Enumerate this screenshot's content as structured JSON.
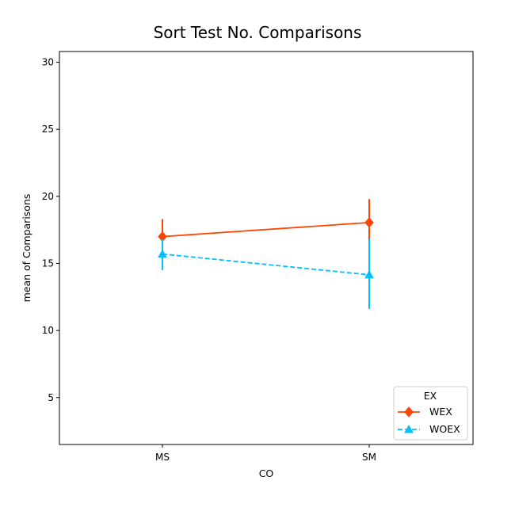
{
  "chart_data": {
    "type": "line",
    "title": "Sort Test No. Comparisons",
    "xlabel": "CO",
    "ylabel": "mean of Comparisons",
    "categories": [
      "MS",
      "SM"
    ],
    "ylim": [
      1.5,
      30.8
    ],
    "yticks": [
      5,
      10,
      15,
      20,
      25,
      30
    ],
    "legend": {
      "title": "EX",
      "placement": "lower-right"
    },
    "series": [
      {
        "name": "WEX",
        "values": [
          17.0,
          18.05
        ],
        "err_low": [
          15.6,
          16.7
        ],
        "err_high": [
          18.3,
          19.8
        ],
        "color": "#ff4500",
        "marker": "diamond",
        "linestyle": "solid"
      },
      {
        "name": "WOEX",
        "values": [
          15.7,
          14.15
        ],
        "err_low": [
          14.5,
          11.6
        ],
        "err_high": [
          16.8,
          16.8
        ],
        "color": "#00bfff",
        "marker": "triangle",
        "linestyle": "dashed"
      }
    ]
  }
}
